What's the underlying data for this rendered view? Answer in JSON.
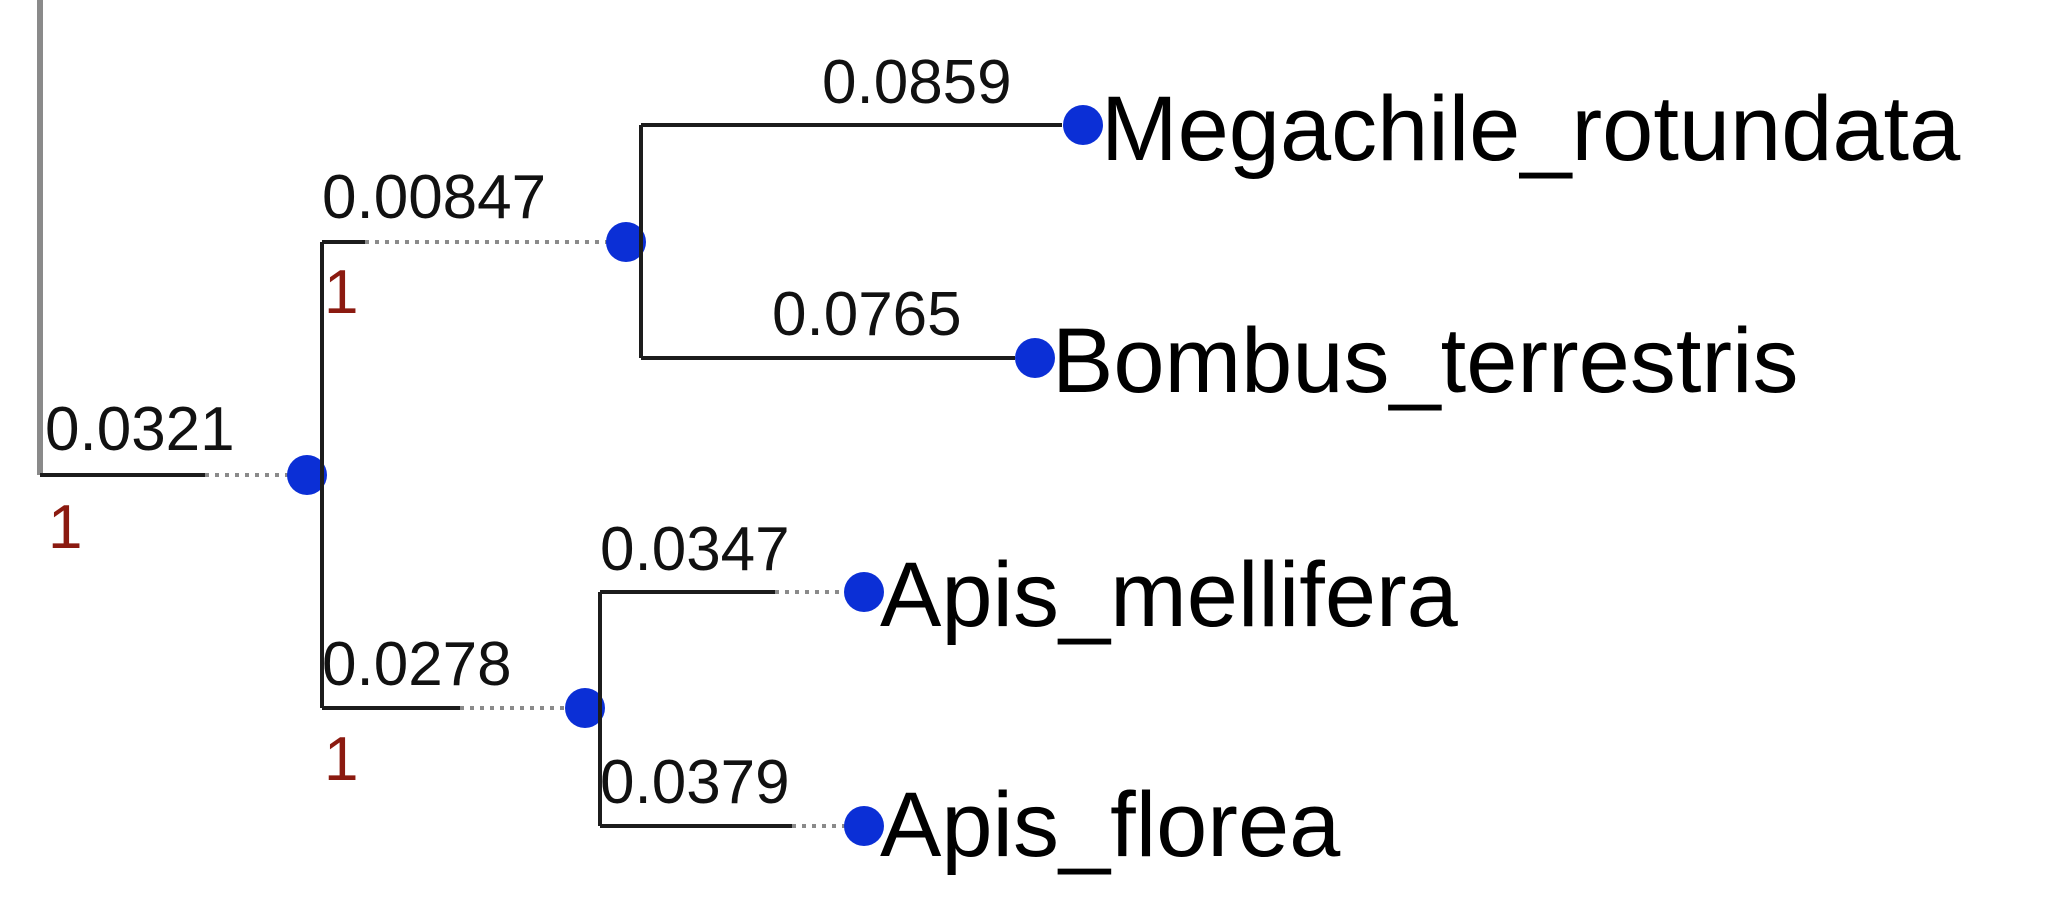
{
  "tree": {
    "root_branch": {
      "length": "0.0321",
      "support": "1"
    },
    "clade_upper": {
      "length": "0.00847",
      "support": "1"
    },
    "clade_lower": {
      "length": "0.0278",
      "support": "1"
    },
    "tips": [
      {
        "name": "Megachile_rotundata",
        "length": "0.0859"
      },
      {
        "name": "Bombus_terrestris",
        "length": "0.0765"
      },
      {
        "name": "Apis_mellifera",
        "length": "0.0347"
      },
      {
        "name": "Apis_florea",
        "length": "0.0379"
      }
    ]
  },
  "colors": {
    "node": "#0b2fd6",
    "support_label": "#8b1a10",
    "branch": "#1c1c1c"
  }
}
